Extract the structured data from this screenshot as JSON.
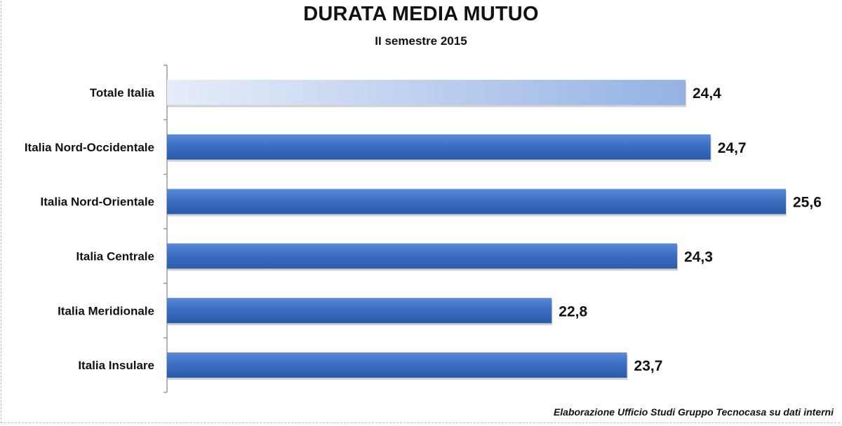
{
  "chart_data": {
    "type": "bar",
    "orientation": "horizontal",
    "title": "DURATA MEDIA MUTUO",
    "subtitle": "II semestre 2015",
    "categories": [
      "Totale Italia",
      "Italia Nord-Occidentale",
      "Italia Nord-Orientale",
      "Italia Centrale",
      "Italia Meridionale",
      "Italia Insulare"
    ],
    "values": [
      24.4,
      24.7,
      25.6,
      24.3,
      22.8,
      23.7
    ],
    "value_labels": [
      "24,4",
      "24,7",
      "25,6",
      "24,3",
      "22,8",
      "23,7"
    ],
    "xlim": [
      18.2,
      25.6
    ],
    "grid": false,
    "colors": {
      "bar": "#3c6fc4",
      "highlight": "#a9c0ea"
    }
  },
  "footer": {
    "credit": "Elaborazione Ufficio Studi Gruppo Tecnocasa su dati interni"
  }
}
